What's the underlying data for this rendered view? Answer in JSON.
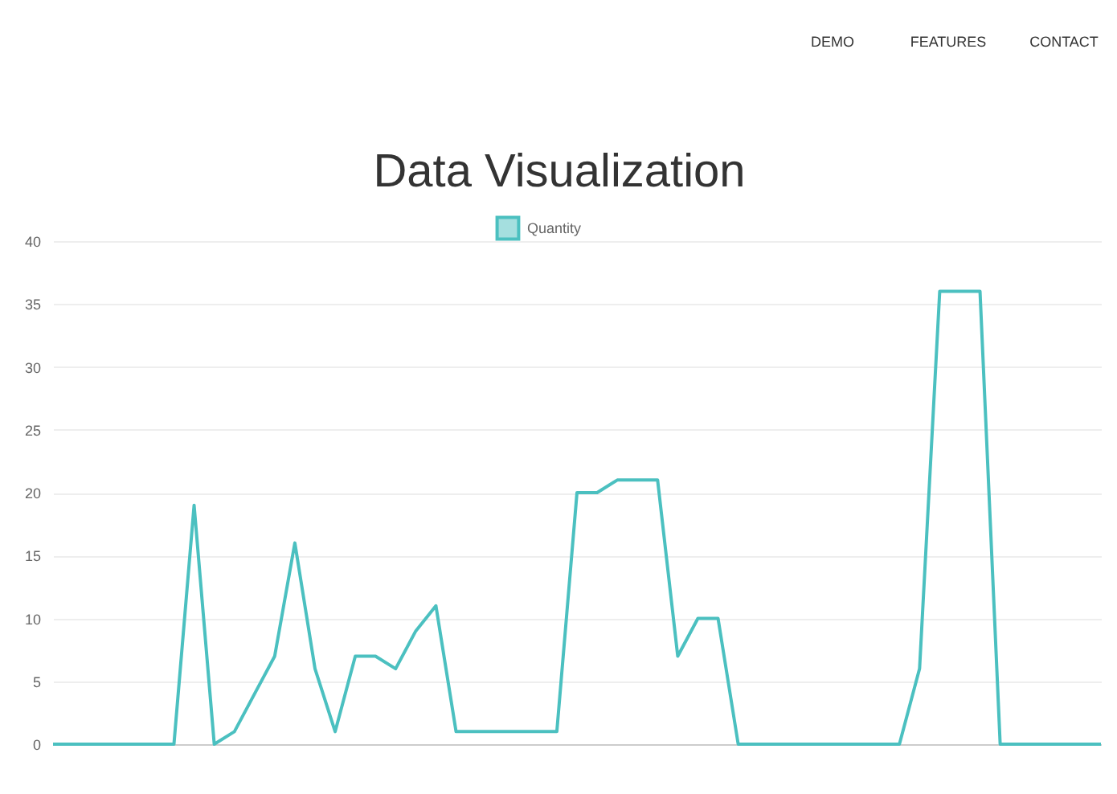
{
  "chart_data": {
    "type": "line",
    "title": "Data Visualization",
    "annotations": [
      "DEMO",
      "FEATURES",
      "CONTACT"
    ],
    "categories": [
      null,
      null,
      null,
      null,
      null,
      null,
      null,
      null,
      null,
      null,
      null,
      null,
      null,
      null,
      null,
      null,
      null,
      null,
      null,
      null,
      null,
      null,
      null,
      null,
      null,
      null,
      null,
      null,
      null,
      null,
      null,
      null,
      null,
      null,
      null,
      null,
      null,
      null,
      null,
      null,
      null,
      null,
      null,
      null,
      null,
      null,
      null,
      null,
      null,
      null,
      null,
      null,
      null
    ],
    "series": [
      {
        "name": "Quantity",
        "color": "#4bc0c0",
        "values": [
          0,
          0,
          0,
          0,
          0,
          0,
          0,
          19,
          0,
          1,
          4,
          7,
          16,
          6,
          1,
          7,
          7,
          6,
          9,
          11,
          1,
          1,
          1,
          1,
          1,
          1,
          20,
          20,
          21,
          21,
          21,
          7,
          10,
          10,
          0,
          0,
          0,
          0,
          0,
          0,
          0,
          0,
          0,
          6,
          36,
          36,
          36,
          0,
          0,
          0,
          0,
          0,
          0
        ]
      }
    ],
    "ylim": [
      0,
      40
    ],
    "yticks": [
      0,
      5,
      10,
      15,
      20,
      25,
      30,
      35,
      40
    ],
    "grid": "y",
    "legend": "top",
    "marker": "none",
    "line_style": "solid"
  }
}
